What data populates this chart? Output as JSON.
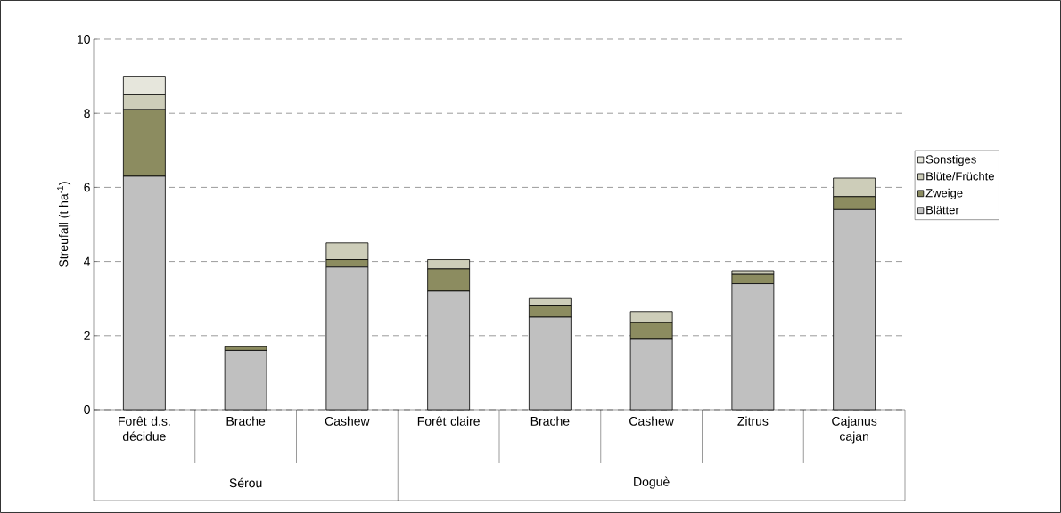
{
  "chart_data": {
    "type": "bar",
    "stacked": true,
    "ylabel": "Streufall (t ha$^{-1}$)",
    "categories": [
      "Forêt d.s. décidue",
      "Brache",
      "Cashew",
      "Forêt claire",
      "Brache",
      "Cashew",
      "Zitrus",
      "Cajanus cajan"
    ],
    "series": [
      {
        "name": "Blätter",
        "color": "#c0c0c0",
        "values": [
          6.3,
          1.6,
          3.85,
          3.2,
          2.5,
          1.9,
          3.4,
          5.4
        ]
      },
      {
        "name": "Zweige",
        "color": "#8c8c60",
        "values": [
          1.8,
          0.1,
          0.2,
          0.6,
          0.3,
          0.45,
          0.25,
          0.35
        ]
      },
      {
        "name": "Blüte/Früchte",
        "color": "#cdcdb9",
        "values": [
          0.4,
          null,
          0.45,
          0.25,
          0.2,
          0.3,
          0.1,
          0.5
        ]
      },
      {
        "name": "Sonstiges",
        "color": "#e6e6dc",
        "values": [
          0.5,
          null,
          null,
          null,
          null,
          null,
          null,
          null
        ]
      }
    ],
    "ylim": [
      0,
      10
    ],
    "yticks": [
      0,
      2,
      4,
      6,
      8,
      10
    ],
    "grid": "y",
    "legend": "right",
    "annotations": [
      "Sérou",
      "Doguè"
    ]
  }
}
